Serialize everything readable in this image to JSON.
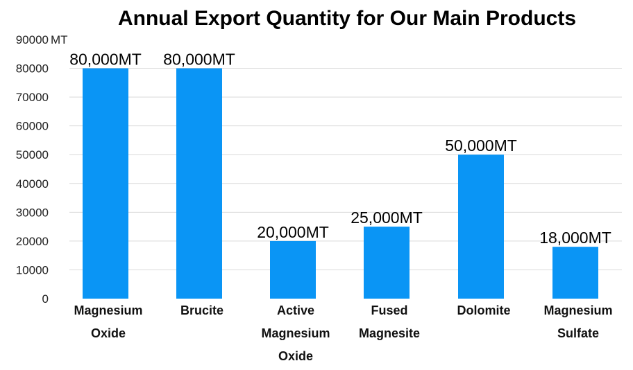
{
  "chart_data": {
    "type": "bar",
    "title": "Annual Export Quantity for Our Main Products",
    "y_unit_label": "MT",
    "ylim": [
      0,
      90000
    ],
    "y_ticks": [
      "0",
      "10000",
      "20000",
      "30000",
      "40000",
      "50000",
      "60000",
      "70000",
      "80000",
      "90000"
    ],
    "grid": true,
    "categories": [
      [
        "Magnesium",
        "Oxide"
      ],
      [
        "Brucite"
      ],
      [
        "Active",
        "Magnesium",
        "Oxide"
      ],
      [
        "Fused",
        "Magnesite"
      ],
      [
        "Dolomite"
      ],
      [
        "Magnesium",
        "Sulfate"
      ]
    ],
    "values": [
      80000,
      80000,
      20000,
      25000,
      50000,
      18000
    ],
    "data_labels": [
      "80,000MT",
      "80,000MT",
      "20,000MT",
      "25,000MT",
      "50,000MT",
      "18,000MT"
    ],
    "bar_color": "#0a95f5"
  }
}
